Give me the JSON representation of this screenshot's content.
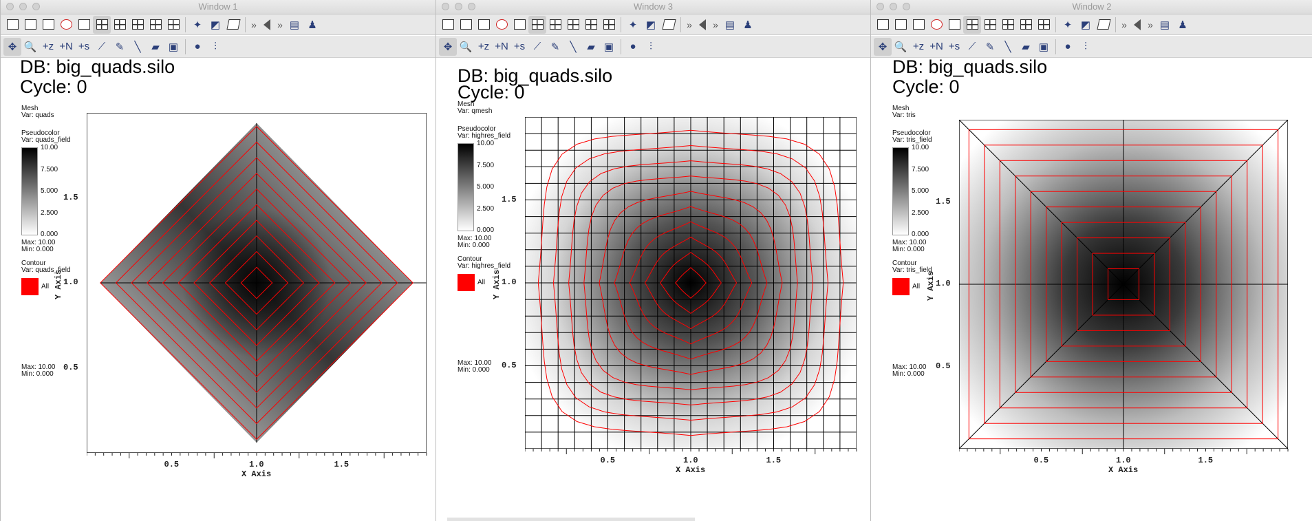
{
  "toolbar": {
    "row1_icons": [
      "new-window-icon",
      "copy-window-icon",
      "clone-window-icon",
      "delete-window-icon",
      "layout-1x1-icon",
      "layout-1x2-icon",
      "layout-2x2-icon",
      "layout-2x3-icon",
      "layout-3x2-icon",
      "layout-3x3-icon",
      "pick-icon",
      "locate-icon",
      "view-3d-icon",
      "more-icon",
      "play-back-icon",
      "more-icon",
      "annotation-icon",
      "spin-icon"
    ],
    "row2_icons": [
      "navigate-icon",
      "zoom-icon",
      "zone-pick-icon",
      "node-pick-icon",
      "s-pick-icon",
      "line-out-icon",
      "point-tool-icon",
      "line-tool-icon",
      "plane-tool-icon",
      "box-tool-icon",
      "sphere-tool-icon",
      "axis-restrict-icon"
    ]
  },
  "windows": [
    {
      "title": "Window 1",
      "db": "DB: big_quads.silo",
      "cycle": "Cycle: 0",
      "mesh_label": "Mesh",
      "mesh_var": "Var: quads",
      "pc_label": "Pseudocolor",
      "pc_var": "Var: quads_field",
      "legend_ticks": [
        "10.00",
        "7.500",
        "5.000",
        "2.500",
        "0.000"
      ],
      "pc_max": "Max:  10.00",
      "pc_min": "Min:  0.000",
      "contour_label": "Contour",
      "contour_var": "Var: quads_field",
      "contour_all": "All",
      "c_max": "Max:  10.00",
      "c_min": "Min:  0.000",
      "xaxis": "X Axis",
      "yaxis": "Y Axis",
      "xticks": [
        "0.5",
        "1.0",
        "1.5"
      ],
      "yticks": [
        "0.5",
        "1.0",
        "1.5"
      ],
      "plot_style": "diamond"
    },
    {
      "title": "Window 3",
      "db": "DB: big_quads.silo",
      "cycle": "Cycle: 0",
      "mesh_label": "Mesh",
      "mesh_var": "Var: qmesh",
      "pc_label": "Pseudocolor",
      "pc_var": "Var: highres_field",
      "legend_ticks": [
        "10.00",
        "7.500",
        "5.000",
        "2.500",
        "0.000"
      ],
      "pc_max": "Max:  10.00",
      "pc_min": "Min:  0.000",
      "contour_label": "Contour",
      "contour_var": "Var: highres_field",
      "contour_all": "All",
      "c_max": "Max:  10.00",
      "c_min": "Min:  0.000",
      "xaxis": "X Axis",
      "yaxis": "Y Axis",
      "xticks": [
        "0.5",
        "1.0",
        "1.5"
      ],
      "yticks": [
        "0.5",
        "1.0",
        "1.5"
      ],
      "plot_style": "grid"
    },
    {
      "title": "Window 2",
      "db": "DB: big_quads.silo",
      "cycle": "Cycle: 0",
      "mesh_label": "Mesh",
      "mesh_var": "Var: tris",
      "pc_label": "Pseudocolor",
      "pc_var": "Var: tris_field",
      "legend_ticks": [
        "10.00",
        "7.500",
        "5.000",
        "2.500",
        "0.000"
      ],
      "pc_max": "Max:  10.00",
      "pc_min": "Min:  0.000",
      "contour_label": "Contour",
      "contour_var": "Var: tris_field",
      "contour_all": "All",
      "c_max": "Max:  10.00",
      "c_min": "Min:  0.000",
      "xaxis": "X Axis",
      "yaxis": "Y Axis",
      "xticks": [
        "0.5",
        "1.0",
        "1.5"
      ],
      "yticks": [
        "0.5",
        "1.0",
        "1.5"
      ],
      "plot_style": "square"
    }
  ],
  "colors": {
    "contour": "#ff0000",
    "mesh": "#000000"
  }
}
